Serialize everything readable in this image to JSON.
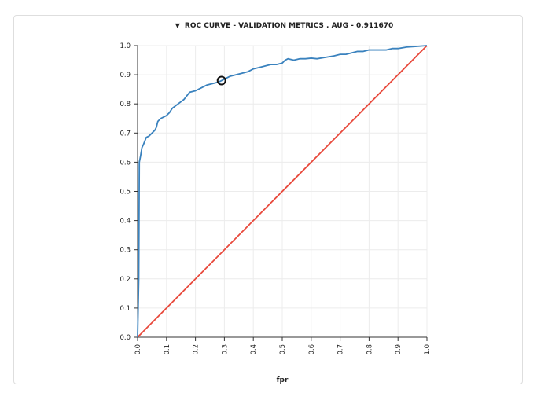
{
  "chart_data": {
    "type": "line",
    "title": "ROC CURVE - VALIDATION METRICS . AUG - 0.911670",
    "xlabel": "fpr",
    "ylabel": "",
    "xlim": [
      0,
      1
    ],
    "ylim": [
      0,
      1
    ],
    "grid": true,
    "x_ticks": [
      "0.0",
      "0.1",
      "0.2",
      "0.3",
      "0.4",
      "0.5",
      "0.6",
      "0.7",
      "0.8",
      "0.9",
      "1.0"
    ],
    "y_ticks": [
      "0.0",
      "0.1",
      "0.2",
      "0.3",
      "0.4",
      "0.5",
      "0.6",
      "0.7",
      "0.8",
      "0.9",
      "1.0"
    ],
    "series": [
      {
        "color": "#3a82be",
        "x": [
          0,
          0.002,
          0.004,
          0.005,
          0.006,
          0.01,
          0.015,
          0.02,
          0.03,
          0.04,
          0.05,
          0.06,
          0.065,
          0.07,
          0.08,
          0.09,
          0.1,
          0.11,
          0.12,
          0.14,
          0.16,
          0.18,
          0.2,
          0.22,
          0.24,
          0.26,
          0.28,
          0.29,
          0.3,
          0.32,
          0.34,
          0.36,
          0.38,
          0.4,
          0.42,
          0.44,
          0.46,
          0.48,
          0.5,
          0.51,
          0.52,
          0.54,
          0.56,
          0.58,
          0.6,
          0.62,
          0.65,
          0.68,
          0.7,
          0.72,
          0.74,
          0.76,
          0.78,
          0.8,
          0.83,
          0.86,
          0.88,
          0.9,
          0.93,
          0.96,
          1.0
        ],
        "y": [
          0,
          0.1,
          0.2,
          0.4,
          0.6,
          0.62,
          0.65,
          0.66,
          0.685,
          0.69,
          0.7,
          0.71,
          0.72,
          0.74,
          0.75,
          0.755,
          0.76,
          0.77,
          0.785,
          0.8,
          0.815,
          0.84,
          0.845,
          0.855,
          0.865,
          0.87,
          0.875,
          0.88,
          0.885,
          0.895,
          0.9,
          0.905,
          0.91,
          0.92,
          0.925,
          0.93,
          0.935,
          0.935,
          0.94,
          0.95,
          0.955,
          0.95,
          0.955,
          0.955,
          0.957,
          0.955,
          0.96,
          0.965,
          0.97,
          0.97,
          0.975,
          0.98,
          0.98,
          0.985,
          0.985,
          0.985,
          0.99,
          0.99,
          0.995,
          0.997,
          1.0
        ]
      },
      {
        "color": "#e8493c",
        "x": [
          0,
          1
        ],
        "y": [
          0,
          1
        ]
      }
    ],
    "highlight_point": {
      "x": 0.29,
      "y": 0.88
    }
  }
}
